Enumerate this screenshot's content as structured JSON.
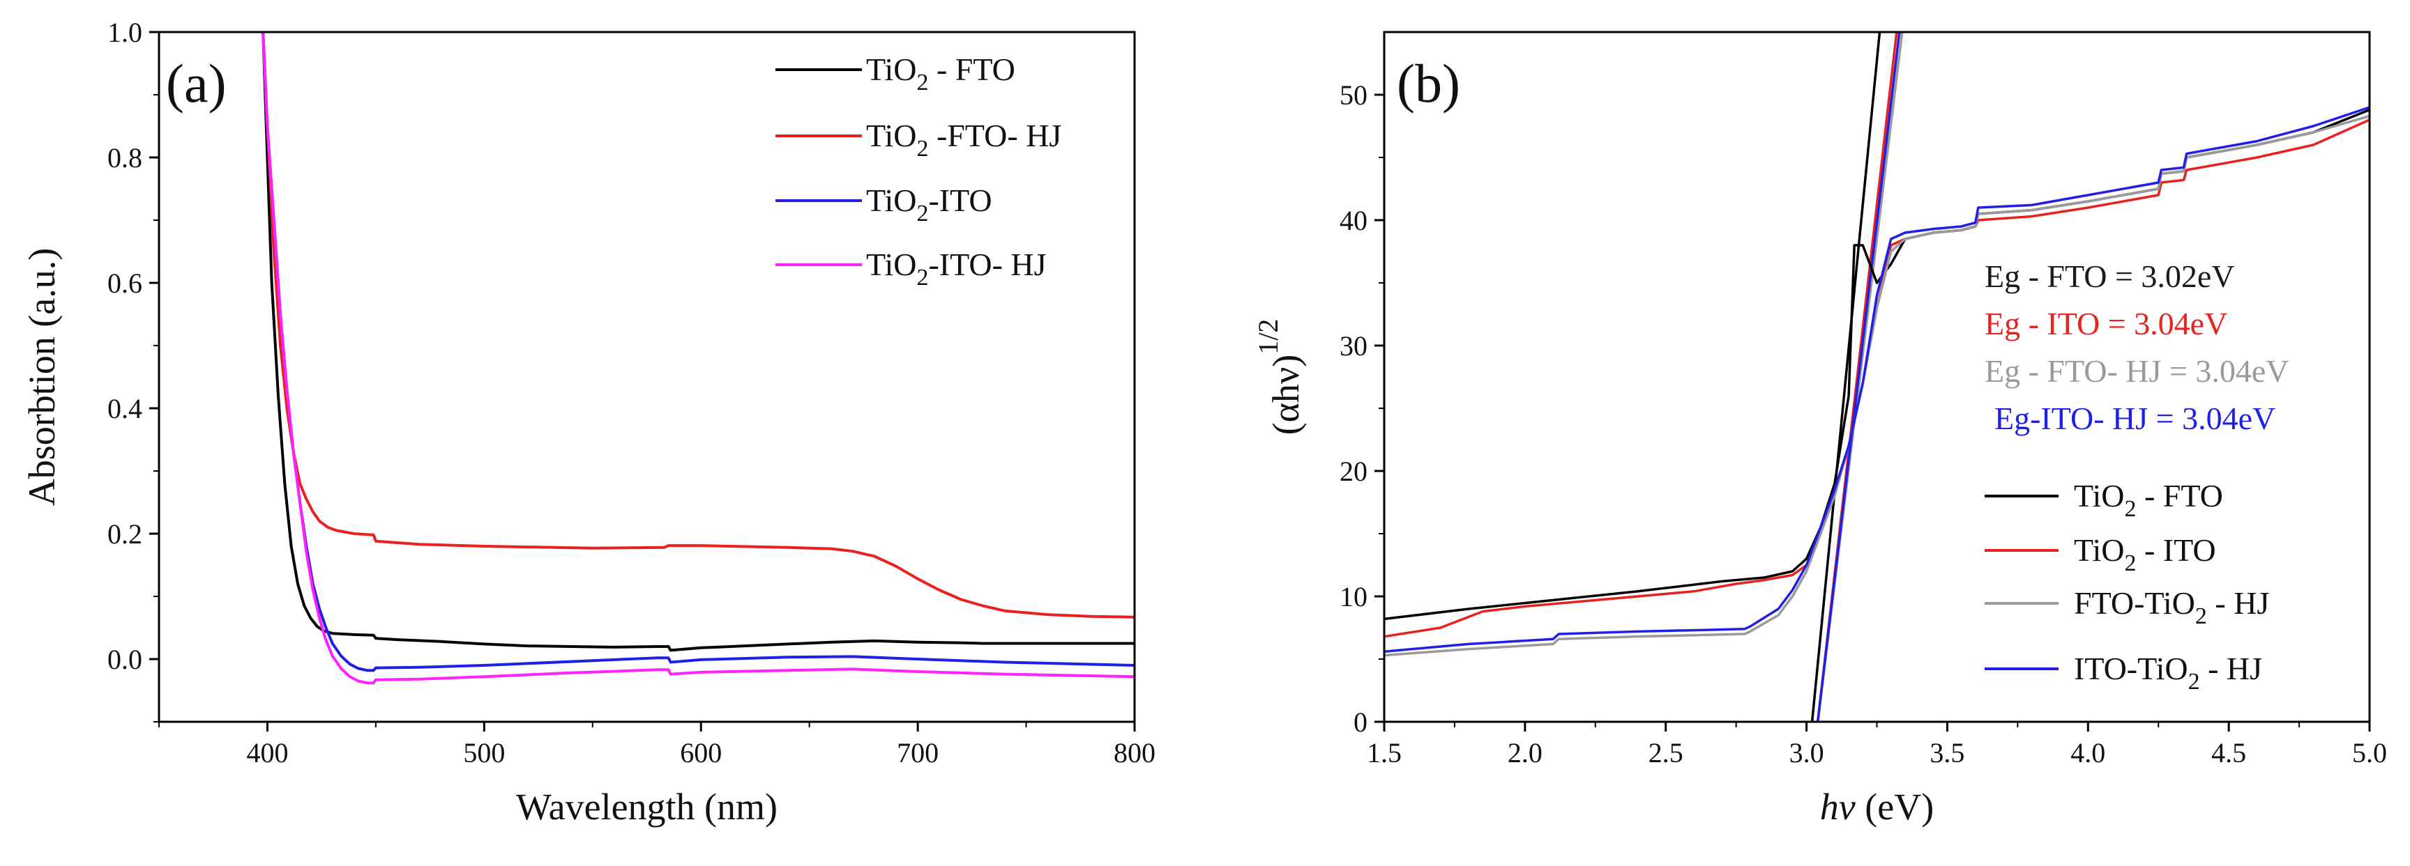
{
  "chart_data": [
    {
      "id": "a",
      "type": "line",
      "panel_label": "(a)",
      "xlabel": "Wavelength (nm)",
      "ylabel": "Absorbtion (a.u.)",
      "xlim": [
        350,
        800
      ],
      "ylim": [
        -0.1,
        1.0
      ],
      "xticks": [
        400,
        500,
        600,
        700,
        800
      ],
      "yticks": [
        0.0,
        0.2,
        0.4,
        0.6,
        0.8,
        1.0
      ],
      "ytick_labels": [
        "0.0",
        "0.2",
        "0.4",
        "0.6",
        "0.8",
        "1.0"
      ],
      "legend_position": "top-right",
      "series": [
        {
          "name": "TiO2 - FTO",
          "legend_base": "TiO",
          "legend_sub": "2",
          "legend_rest": " - FTO",
          "color": "#000000",
          "x": [
            398,
            400,
            402,
            405,
            408,
            411,
            414,
            417,
            420,
            423,
            426,
            430,
            440,
            449,
            450,
            460,
            480,
            500,
            520,
            540,
            560,
            580,
            585,
            586,
            600,
            620,
            640,
            660,
            680,
            700,
            720,
            730,
            740,
            760,
            780,
            800
          ],
          "y": [
            1.0,
            0.8,
            0.6,
            0.42,
            0.28,
            0.18,
            0.12,
            0.085,
            0.065,
            0.052,
            0.045,
            0.041,
            0.039,
            0.038,
            0.033,
            0.031,
            0.028,
            0.024,
            0.021,
            0.02,
            0.019,
            0.02,
            0.02,
            0.014,
            0.018,
            0.021,
            0.024,
            0.027,
            0.029,
            0.027,
            0.026,
            0.025,
            0.025,
            0.025,
            0.025,
            0.025
          ]
        },
        {
          "name": "TiO2 -FTO- HJ",
          "legend_base": "TiO",
          "legend_sub": "2",
          "legend_rest": " -FTO- HJ",
          "color": "#e8221e",
          "x": [
            398,
            400,
            403,
            406,
            409,
            412,
            415,
            418,
            421,
            424,
            428,
            432,
            440,
            449,
            450,
            470,
            500,
            550,
            583,
            585,
            600,
            640,
            660,
            670,
            680,
            690,
            700,
            710,
            720,
            730,
            740,
            760,
            780,
            800
          ],
          "y": [
            1.0,
            0.85,
            0.65,
            0.5,
            0.4,
            0.33,
            0.28,
            0.255,
            0.235,
            0.22,
            0.21,
            0.205,
            0.2,
            0.198,
            0.188,
            0.183,
            0.18,
            0.177,
            0.178,
            0.181,
            0.181,
            0.178,
            0.176,
            0.172,
            0.164,
            0.148,
            0.128,
            0.11,
            0.095,
            0.085,
            0.077,
            0.071,
            0.068,
            0.067
          ]
        },
        {
          "name": "TiO2-ITO",
          "legend_base": "TiO",
          "legend_sub": "2",
          "legend_rest": "-ITO",
          "color": "#1f1fe6",
          "x": [
            398,
            400,
            403,
            406,
            409,
            412,
            415,
            418,
            421,
            424,
            427,
            430,
            434,
            438,
            442,
            446,
            449,
            450,
            470,
            500,
            540,
            580,
            585,
            586,
            600,
            640,
            670,
            700,
            740,
            800
          ],
          "y": [
            1.0,
            0.85,
            0.7,
            0.55,
            0.43,
            0.33,
            0.25,
            0.18,
            0.12,
            0.08,
            0.05,
            0.025,
            0.005,
            -0.008,
            -0.015,
            -0.018,
            -0.018,
            -0.014,
            -0.013,
            -0.01,
            -0.004,
            0.002,
            0.002,
            -0.005,
            -0.001,
            0.003,
            0.004,
            0.0,
            -0.005,
            -0.01
          ]
        },
        {
          "name": "TiO2-ITO- HJ",
          "legend_base": "TiO",
          "legend_sub": "2",
          "legend_rest": "-ITO- HJ",
          "color": "#ff22ff",
          "x": [
            398,
            400,
            403,
            406,
            409,
            412,
            415,
            418,
            421,
            424,
            427,
            430,
            434,
            438,
            442,
            446,
            449,
            450,
            470,
            500,
            540,
            580,
            585,
            586,
            600,
            640,
            670,
            700,
            740,
            800
          ],
          "y": [
            1.0,
            0.85,
            0.7,
            0.55,
            0.43,
            0.33,
            0.25,
            0.17,
            0.11,
            0.065,
            0.03,
            0.005,
            -0.015,
            -0.028,
            -0.035,
            -0.038,
            -0.038,
            -0.033,
            -0.032,
            -0.028,
            -0.022,
            -0.017,
            -0.017,
            -0.024,
            -0.021,
            -0.018,
            -0.016,
            -0.02,
            -0.024,
            -0.028
          ]
        }
      ]
    },
    {
      "id": "b",
      "type": "line",
      "panel_label": "(b)",
      "xlabel_italic": "hν",
      "xlabel_rest": "  (eV)",
      "ylabel_main": "(αhν)",
      "ylabel_sup": "1/2",
      "xlim": [
        1.5,
        5.0
      ],
      "ylim": [
        0,
        55
      ],
      "xticks": [
        1.5,
        2.0,
        2.5,
        3.0,
        3.5,
        4.0,
        4.5,
        5.0
      ],
      "xtick_labels": [
        "1.5",
        "2.0",
        "2.5",
        "3.0",
        "3.5",
        "4.0",
        "4.5",
        "5.0"
      ],
      "yticks": [
        0,
        10,
        20,
        30,
        40,
        50
      ],
      "ytick_labels": [
        "0",
        "10",
        "20",
        "30",
        "40",
        "50"
      ],
      "legend_position": "bottom-right",
      "annotations": [
        {
          "text": "Eg - FTO = 3.02eV",
          "color": "#1a1a1a"
        },
        {
          "text": "Eg - ITO  = 3.04eV",
          "color": "#e8221e"
        },
        {
          "text": "Eg - FTO- HJ = 3.04eV",
          "color": "#9a9a9a"
        },
        {
          "text": "Eg-ITO- HJ = 3.04eV",
          "color": "#1f1fe6"
        }
      ],
      "series": [
        {
          "name": "TiO2 - FTO",
          "legend_base": "TiO",
          "legend_sub": "2",
          "legend_rest": " - FTO",
          "color": "#000000",
          "x": [
            1.5,
            1.8,
            2.1,
            2.4,
            2.7,
            2.85,
            2.95,
            3.0,
            3.05,
            3.1,
            3.15,
            3.17,
            3.2,
            3.25,
            3.3,
            3.35,
            3.45,
            3.55,
            3.6,
            3.61,
            3.8,
            4.0,
            4.25,
            4.26,
            4.34,
            4.35,
            4.6,
            4.8,
            5.0
          ],
          "y": [
            8.2,
            9.0,
            9.7,
            10.4,
            11.2,
            11.5,
            12.0,
            13.0,
            15.5,
            19.0,
            26.0,
            38.0,
            38.0,
            35.0,
            36.5,
            38.5,
            39.0,
            39.2,
            39.5,
            40.5,
            40.8,
            41.5,
            42.5,
            43.7,
            43.9,
            45.0,
            46.0,
            47.0,
            48.8
          ]
        },
        {
          "name": "TiO2 - ITO",
          "legend_base": "TiO",
          "legend_sub": "2",
          "legend_rest": " - ITO",
          "color": "#e8221e",
          "x": [
            1.5,
            1.7,
            1.85,
            2.0,
            2.3,
            2.6,
            2.75,
            2.85,
            2.95,
            3.0,
            3.05,
            3.1,
            3.15,
            3.2,
            3.25,
            3.3,
            3.35,
            3.45,
            3.55,
            3.6,
            3.61,
            3.8,
            4.0,
            4.25,
            4.26,
            4.34,
            4.35,
            4.6,
            4.8,
            5.0
          ],
          "y": [
            6.8,
            7.5,
            8.8,
            9.2,
            9.8,
            10.4,
            11.0,
            11.3,
            11.7,
            12.5,
            15.0,
            18.5,
            22.0,
            27.0,
            33.0,
            38.0,
            38.5,
            39.0,
            39.2,
            39.5,
            40.0,
            40.3,
            41.0,
            42.0,
            43.0,
            43.2,
            44.0,
            45.0,
            46.0,
            48.0
          ]
        },
        {
          "name": "FTO-TiO2 - HJ",
          "legend_base": "FTO-TiO",
          "legend_sub": "2",
          "legend_rest": " - HJ",
          "color": "#9a9a9a",
          "x": [
            1.5,
            1.8,
            2.1,
            2.12,
            2.4,
            2.6,
            2.78,
            2.8,
            2.9,
            2.95,
            3.0,
            3.05,
            3.1,
            3.15,
            3.2,
            3.25,
            3.3,
            3.35,
            3.45,
            3.55,
            3.6,
            3.61,
            3.8,
            4.0,
            4.25,
            4.26,
            4.34,
            4.35,
            4.6,
            4.8,
            5.0
          ],
          "y": [
            5.3,
            5.8,
            6.2,
            6.6,
            6.8,
            6.9,
            7.0,
            7.2,
            8.5,
            10.0,
            12.0,
            15.0,
            18.0,
            22.0,
            27.0,
            33.0,
            37.5,
            38.5,
            39.0,
            39.2,
            39.5,
            40.5,
            40.8,
            41.5,
            42.5,
            43.7,
            43.9,
            45.0,
            46.0,
            47.0,
            48.3
          ]
        },
        {
          "name": "ITO-TiO2 - HJ",
          "legend_base": "ITO-TiO",
          "legend_sub": "2",
          "legend_rest": " - HJ",
          "color": "#1f1fe6",
          "x": [
            1.5,
            1.8,
            2.1,
            2.12,
            2.4,
            2.6,
            2.78,
            2.8,
            2.9,
            2.95,
            3.0,
            3.05,
            3.1,
            3.15,
            3.2,
            3.25,
            3.3,
            3.35,
            3.45,
            3.55,
            3.6,
            3.61,
            3.8,
            4.0,
            4.25,
            4.26,
            4.34,
            4.35,
            4.6,
            4.8,
            5.0
          ],
          "y": [
            5.6,
            6.2,
            6.6,
            7.0,
            7.2,
            7.3,
            7.4,
            7.6,
            9.0,
            10.5,
            12.5,
            15.5,
            18.5,
            22.0,
            27.0,
            34.0,
            38.5,
            39.0,
            39.3,
            39.5,
            39.8,
            41.0,
            41.2,
            42.0,
            43.0,
            44.0,
            44.2,
            45.3,
            46.3,
            47.5,
            49.0
          ]
        }
      ],
      "tangent_lines": [
        {
          "name": "tangent-FTO",
          "color": "#000000",
          "x": [
            3.02,
            3.26
          ],
          "y": [
            0,
            55
          ]
        },
        {
          "name": "tangent-ITO",
          "color": "#e8221e",
          "x": [
            3.04,
            3.32
          ],
          "y": [
            0,
            55
          ]
        },
        {
          "name": "tangent-FTO-HJ",
          "color": "#9a9a9a",
          "x": [
            3.04,
            3.34
          ],
          "y": [
            0,
            55
          ]
        },
        {
          "name": "tangent-ITO-HJ",
          "color": "#1f1fe6",
          "x": [
            3.04,
            3.33
          ],
          "y": [
            0,
            55
          ]
        }
      ]
    }
  ]
}
